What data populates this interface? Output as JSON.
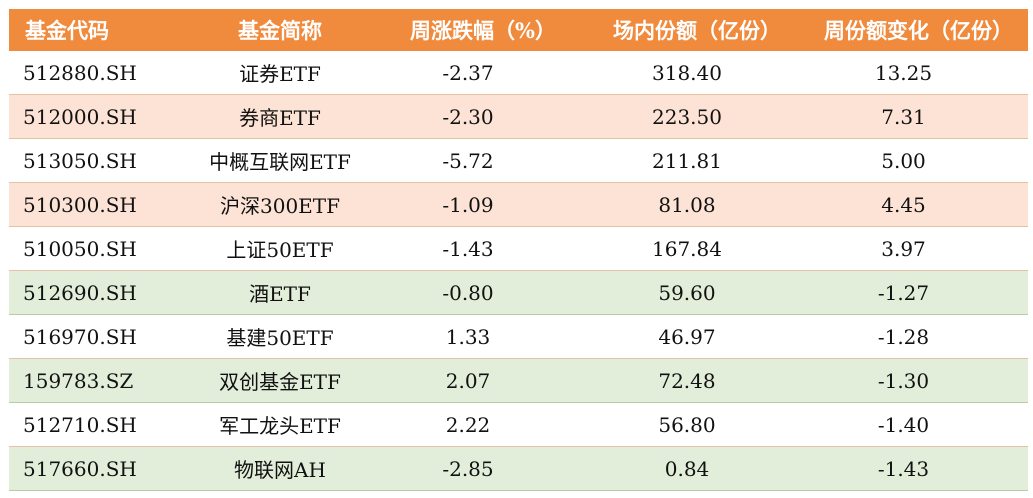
{
  "colors": {
    "header_bg": "#f08a3c",
    "header_text": "#ffffff",
    "row_peach": "#fde3d6",
    "row_green": "#e2eed9",
    "row_white": "#ffffff"
  },
  "table": {
    "columns": [
      "基金代码",
      "基金简称",
      "周涨跌幅（%）",
      "场内份额（亿份）",
      "周份额变化（亿份）"
    ],
    "rows": [
      {
        "code": "512880.SH",
        "name": "证券ETF",
        "weekly_change": "-2.37",
        "shares": "318.40",
        "share_change": "13.25",
        "tone": "white"
      },
      {
        "code": "512000.SH",
        "name": "券商ETF",
        "weekly_change": "-2.30",
        "shares": "223.50",
        "share_change": "7.31",
        "tone": "peach"
      },
      {
        "code": "513050.SH",
        "name": "中概互联网ETF",
        "weekly_change": "-5.72",
        "shares": "211.81",
        "share_change": "5.00",
        "tone": "white"
      },
      {
        "code": "510300.SH",
        "name": "沪深300ETF",
        "weekly_change": "-1.09",
        "shares": "81.08",
        "share_change": "4.45",
        "tone": "peach"
      },
      {
        "code": "510050.SH",
        "name": "上证50ETF",
        "weekly_change": "-1.43",
        "shares": "167.84",
        "share_change": "3.97",
        "tone": "white"
      },
      {
        "code": "512690.SH",
        "name": "酒ETF",
        "weekly_change": "-0.80",
        "shares": "59.60",
        "share_change": "-1.27",
        "tone": "green"
      },
      {
        "code": "516970.SH",
        "name": "基建50ETF",
        "weekly_change": "1.33",
        "shares": "46.97",
        "share_change": "-1.28",
        "tone": "white"
      },
      {
        "code": "159783.SZ",
        "name": "双创基金ETF",
        "weekly_change": "2.07",
        "shares": "72.48",
        "share_change": "-1.30",
        "tone": "green"
      },
      {
        "code": "512710.SH",
        "name": "军工龙头ETF",
        "weekly_change": "2.22",
        "shares": "56.80",
        "share_change": "-1.40",
        "tone": "white"
      },
      {
        "code": "517660.SH",
        "name": "物联网AH",
        "weekly_change": "-2.85",
        "shares": "0.84",
        "share_change": "-1.43",
        "tone": "green"
      }
    ]
  }
}
